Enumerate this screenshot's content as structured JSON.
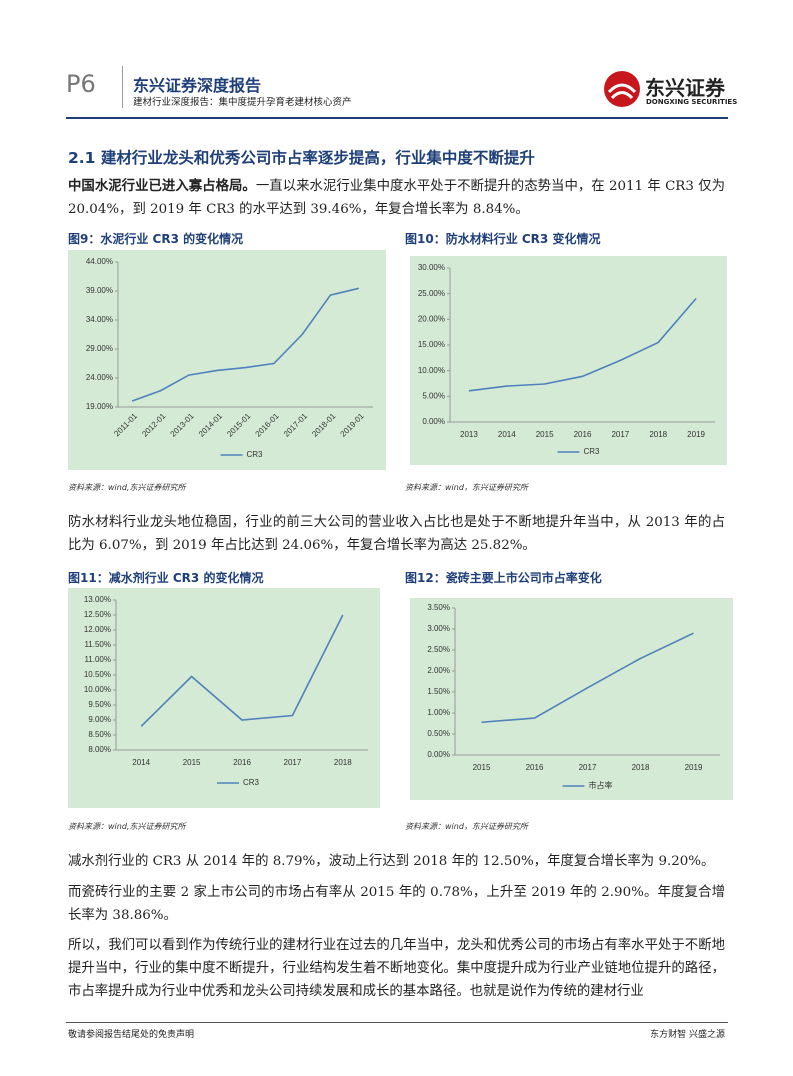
{
  "header": {
    "page": "P6",
    "title": "东兴证券深度报告",
    "subtitle": "建材行业深度报告：集中度提升孕育老建材核心资产",
    "logo_name": "东兴证券",
    "logo_en": "DONGXING SECURITIES"
  },
  "section": {
    "heading": "2.1  建材行业龙头和优秀公司市占率逐步提高，行业集中度不断提升"
  },
  "paragraphs": [
    {
      "lead": "中国水泥行业已进入寡占格局。",
      "text": "一直以来水泥行业集中度水平处于不断提升的态势当中，在 2011 年 CR3 仅为 20.04%，到 2019 年 CR3 的水平达到 39.46%，年复合增长率为 8.84%。"
    },
    {
      "text": "防水材料行业龙头地位稳固，行业的前三大公司的营业收入占比也是处于不断地提升年当中，从 2013 年的占比为 6.07%，到 2019 年占比达到 24.06%，年复合增长率为高达 25.82%。"
    },
    {
      "text": "减水剂行业的 CR3 从 2014 年的 8.79%，波动上行达到 2018 年的 12.50%，年度复合增长率为 9.20%。"
    },
    {
      "text": "而瓷砖行业的主要 2 家上市公司的市场占有率从 2015 年的 0.78%，上升至 2019 年的 2.90%。年度复合增长率为 38.86%。"
    },
    {
      "text": "所以，我们可以看到作为传统行业的建材行业在过去的几年当中，龙头和优秀公司的市场占有率水平处于不断地提升当中，行业的集中度不断提升，行业结构发生着不断地变化。集中度提升成为行业产业链地位提升的路径，市占率提升成为行业中优秀和龙头公司持续发展和成长的基本路径。也就是说作为传统的建材行业"
    }
  ],
  "footer": {
    "left": "敬请参阅报告结尾处的免责声明",
    "right": "东方财智 兴盛之源"
  },
  "chart_data": [
    {
      "type": "line",
      "title": "图9：水泥行业 CR3 的变化情况",
      "source": "资料来源：wind,东兴证券研究所",
      "categories": [
        "2011-01",
        "2012-01",
        "2013-01",
        "2014-01",
        "2015-01",
        "2016-01",
        "2017-01",
        "2018-01",
        "2019-01"
      ],
      "series": [
        {
          "name": "CR3",
          "color": "#4f81bd",
          "values": [
            20.04,
            21.8,
            24.5,
            25.3,
            25.8,
            26.5,
            31.5,
            38.3,
            39.46
          ]
        }
      ],
      "ylim": [
        19,
        44
      ],
      "yticks": [
        {
          "value": 19,
          "label": "19.00%"
        },
        {
          "value": 24,
          "label": "24.00%"
        },
        {
          "value": 29,
          "label": "29.00%"
        },
        {
          "value": 34,
          "label": "34.00%"
        },
        {
          "value": 39,
          "label": "39.00%"
        },
        {
          "value": 44,
          "label": "44.00%"
        }
      ],
      "background": "#d4ead5"
    },
    {
      "type": "line",
      "title": "图10：防水材料行业 CR3 变化情况",
      "source": "资料来源：wind，东兴证券研究所",
      "categories": [
        "2013",
        "2014",
        "2015",
        "2016",
        "2017",
        "2018",
        "2019"
      ],
      "series": [
        {
          "name": "CR3",
          "color": "#4f81bd",
          "values": [
            6.07,
            7.0,
            7.4,
            8.9,
            12.0,
            15.5,
            24.06
          ]
        }
      ],
      "ylim": [
        0,
        30
      ],
      "yticks": [
        {
          "value": 0,
          "label": "0.00%"
        },
        {
          "value": 5,
          "label": "5.00%"
        },
        {
          "value": 10,
          "label": "10.00%"
        },
        {
          "value": 15,
          "label": "15.00%"
        },
        {
          "value": 20,
          "label": "20.00%"
        },
        {
          "value": 25,
          "label": "25.00%"
        },
        {
          "value": 30,
          "label": "30.00%"
        }
      ],
      "background": "#d4ead5"
    },
    {
      "type": "line",
      "title": "图11：减水剂行业 CR3 的变化情况",
      "source": "资料来源：wind,东兴证券研究所",
      "categories": [
        "2014",
        "2015",
        "2016",
        "2017",
        "2018"
      ],
      "series": [
        {
          "name": "CR3",
          "color": "#4f81bd",
          "values": [
            8.79,
            10.45,
            9.0,
            9.15,
            12.5
          ]
        }
      ],
      "ylim": [
        8,
        13
      ],
      "yticks": [
        {
          "value": 8,
          "label": "8.00%"
        },
        {
          "value": 8.5,
          "label": "8.50%"
        },
        {
          "value": 9,
          "label": "9.00%"
        },
        {
          "value": 9.5,
          "label": "9.50%"
        },
        {
          "value": 10,
          "label": "10.00%"
        },
        {
          "value": 10.5,
          "label": "10.50%"
        },
        {
          "value": 11,
          "label": "11.00%"
        },
        {
          "value": 11.5,
          "label": "11.50%"
        },
        {
          "value": 12,
          "label": "12.00%"
        },
        {
          "value": 12.5,
          "label": "12.50%"
        },
        {
          "value": 13,
          "label": "13.00%"
        }
      ],
      "background": "#d4ead5"
    },
    {
      "type": "line",
      "title": "图12：瓷砖主要上市公司市占率变化",
      "source": "资料来源：wind，东兴证券研究所",
      "categories": [
        "2015",
        "2016",
        "2017",
        "2018",
        "2019"
      ],
      "series": [
        {
          "name": "市占率",
          "color": "#4f81bd",
          "values": [
            0.78,
            0.88,
            1.6,
            2.3,
            2.9
          ]
        }
      ],
      "ylim": [
        0,
        3.5
      ],
      "yticks": [
        {
          "value": 0,
          "label": "0.00%"
        },
        {
          "value": 0.5,
          "label": "0.50%"
        },
        {
          "value": 1,
          "label": "1.00%"
        },
        {
          "value": 1.5,
          "label": "1.50%"
        },
        {
          "value": 2,
          "label": "2.00%"
        },
        {
          "value": 2.5,
          "label": "2.50%"
        },
        {
          "value": 3,
          "label": "3.00%"
        },
        {
          "value": 3.5,
          "label": "3.50%"
        }
      ],
      "background": "#d4ead5"
    }
  ]
}
